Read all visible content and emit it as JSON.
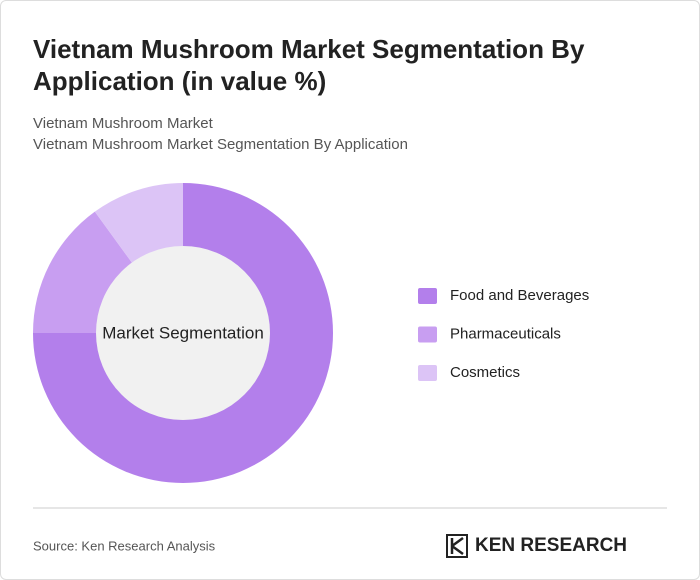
{
  "chart_data": {
    "type": "donut",
    "title": "Vietnam Mushroom Market Segmentation By Application (in value %)",
    "subtitle": [
      "Vietnam Mushroom Market",
      "Vietnam Mushroom Market Segmentation By Application"
    ],
    "center_label": "Market Segmentation",
    "categories": [
      "Food and Beverages",
      "Pharmaceuticals",
      "Cosmetics"
    ],
    "values": [
      75,
      15,
      10
    ],
    "colors": [
      "#b37feb",
      "#c89ef1",
      "#dcc4f6"
    ],
    "legend": "right"
  },
  "footer": {
    "source": "Source: Ken Research Analysis",
    "brand": "KEN RESEARCH"
  }
}
